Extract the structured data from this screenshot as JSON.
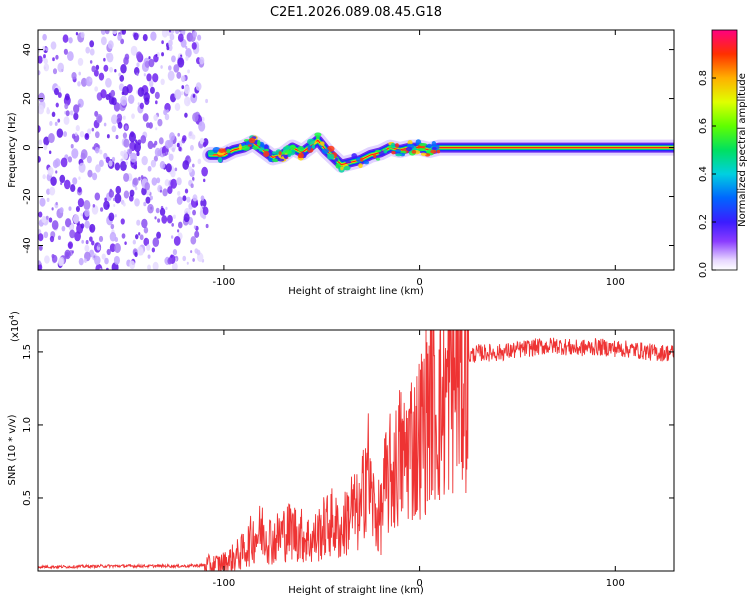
{
  "title": "C2E1.2026.089.08.45.G18",
  "colors": {
    "snr_line": "#ee3333",
    "axis": "#000000",
    "scatter": "#7a2cf0"
  },
  "chart_data": [
    {
      "type": "heatmap",
      "xlabel": "Height of straight line (km)",
      "ylabel": "Frequency (Hz)",
      "xlim": [
        -195,
        130
      ],
      "ylim": [
        -50,
        48
      ],
      "xticks": [
        -100,
        0,
        100
      ],
      "yticks": [
        -40,
        -20,
        0,
        20,
        40
      ],
      "xtick_labels": [
        "-100",
        "0",
        "100"
      ],
      "ytick_labels": [
        "-40",
        "-20",
        "0",
        "20",
        "40"
      ],
      "colorbar": {
        "label": "Normalized spectral amplitude",
        "range": [
          0,
          1
        ],
        "ticks": [
          0.0,
          0.2,
          0.4,
          0.6,
          0.8
        ],
        "tick_labels": [
          "0.0",
          "0.2",
          "0.4",
          "0.6",
          "0.8"
        ]
      },
      "noise_region_km": [
        -195,
        -107
      ],
      "signal_track": [
        {
          "x": -107,
          "f": -3
        },
        {
          "x": -100,
          "f": -3
        },
        {
          "x": -95,
          "f": -1
        },
        {
          "x": -90,
          "f": 0
        },
        {
          "x": -85,
          "f": 2
        },
        {
          "x": -80,
          "f": -1
        },
        {
          "x": -75,
          "f": -4
        },
        {
          "x": -70,
          "f": -3
        },
        {
          "x": -65,
          "f": 0
        },
        {
          "x": -60,
          "f": -2
        },
        {
          "x": -55,
          "f": 1
        },
        {
          "x": -52,
          "f": 3
        },
        {
          "x": -48,
          "f": -1
        },
        {
          "x": -44,
          "f": -4
        },
        {
          "x": -40,
          "f": -7
        },
        {
          "x": -35,
          "f": -6
        },
        {
          "x": -30,
          "f": -5
        },
        {
          "x": -25,
          "f": -3
        },
        {
          "x": -20,
          "f": -2
        },
        {
          "x": -15,
          "f": 0
        },
        {
          "x": -10,
          "f": -1
        },
        {
          "x": -5,
          "f": 0
        },
        {
          "x": 0,
          "f": 0
        },
        {
          "x": 5,
          "f": -1
        },
        {
          "x": 10,
          "f": 0
        },
        {
          "x": 20,
          "f": 0
        },
        {
          "x": 50,
          "f": 0
        },
        {
          "x": 90,
          "f": 0
        },
        {
          "x": 130,
          "f": 0
        }
      ]
    },
    {
      "type": "line",
      "xlabel": "Height of straight line (km)",
      "ylabel": "SNR (10 * v/v)",
      "y_multiplier": "(x10",
      "y_multiplier_exp": "4",
      "y_multiplier_close": ")",
      "xlim": [
        -195,
        130
      ],
      "ylim": [
        0,
        1.65
      ],
      "xticks": [
        -100,
        0,
        100
      ],
      "yticks": [
        0.5,
        1.0,
        1.5
      ],
      "xtick_labels": [
        "-100",
        "0",
        "100"
      ],
      "ytick_labels": [
        "0.5",
        "1.0",
        "1.5"
      ],
      "series": [
        {
          "name": "SNR",
          "x": [
            -195,
            -180,
            -160,
            -140,
            -120,
            -110,
            -100,
            -95,
            -90,
            -85,
            -80,
            -75,
            -70,
            -65,
            -60,
            -55,
            -50,
            -45,
            -40,
            -35,
            -30,
            -27,
            -25,
            -22,
            -20,
            -18,
            -15,
            -12,
            -10,
            -8,
            -5,
            -2,
            0,
            3,
            6,
            9,
            12,
            15,
            18,
            22,
            26,
            30,
            35,
            40,
            50,
            60,
            70,
            80,
            90,
            100,
            110,
            120,
            130
          ],
          "values": [
            0.03,
            0.03,
            0.035,
            0.035,
            0.035,
            0.04,
            0.06,
            0.1,
            0.15,
            0.25,
            0.3,
            0.22,
            0.28,
            0.3,
            0.26,
            0.22,
            0.3,
            0.36,
            0.28,
            0.45,
            0.4,
            0.85,
            0.55,
            0.4,
            0.38,
            0.6,
            0.7,
            0.75,
            0.85,
            0.8,
            0.95,
            0.9,
            1.0,
            1.1,
            1.3,
            1.15,
            1.2,
            1.35,
            1.4,
            1.45,
            1.48,
            1.5,
            1.5,
            1.5,
            1.52,
            1.54,
            1.55,
            1.53,
            1.54,
            1.53,
            1.52,
            1.5,
            1.5
          ]
        }
      ]
    }
  ]
}
